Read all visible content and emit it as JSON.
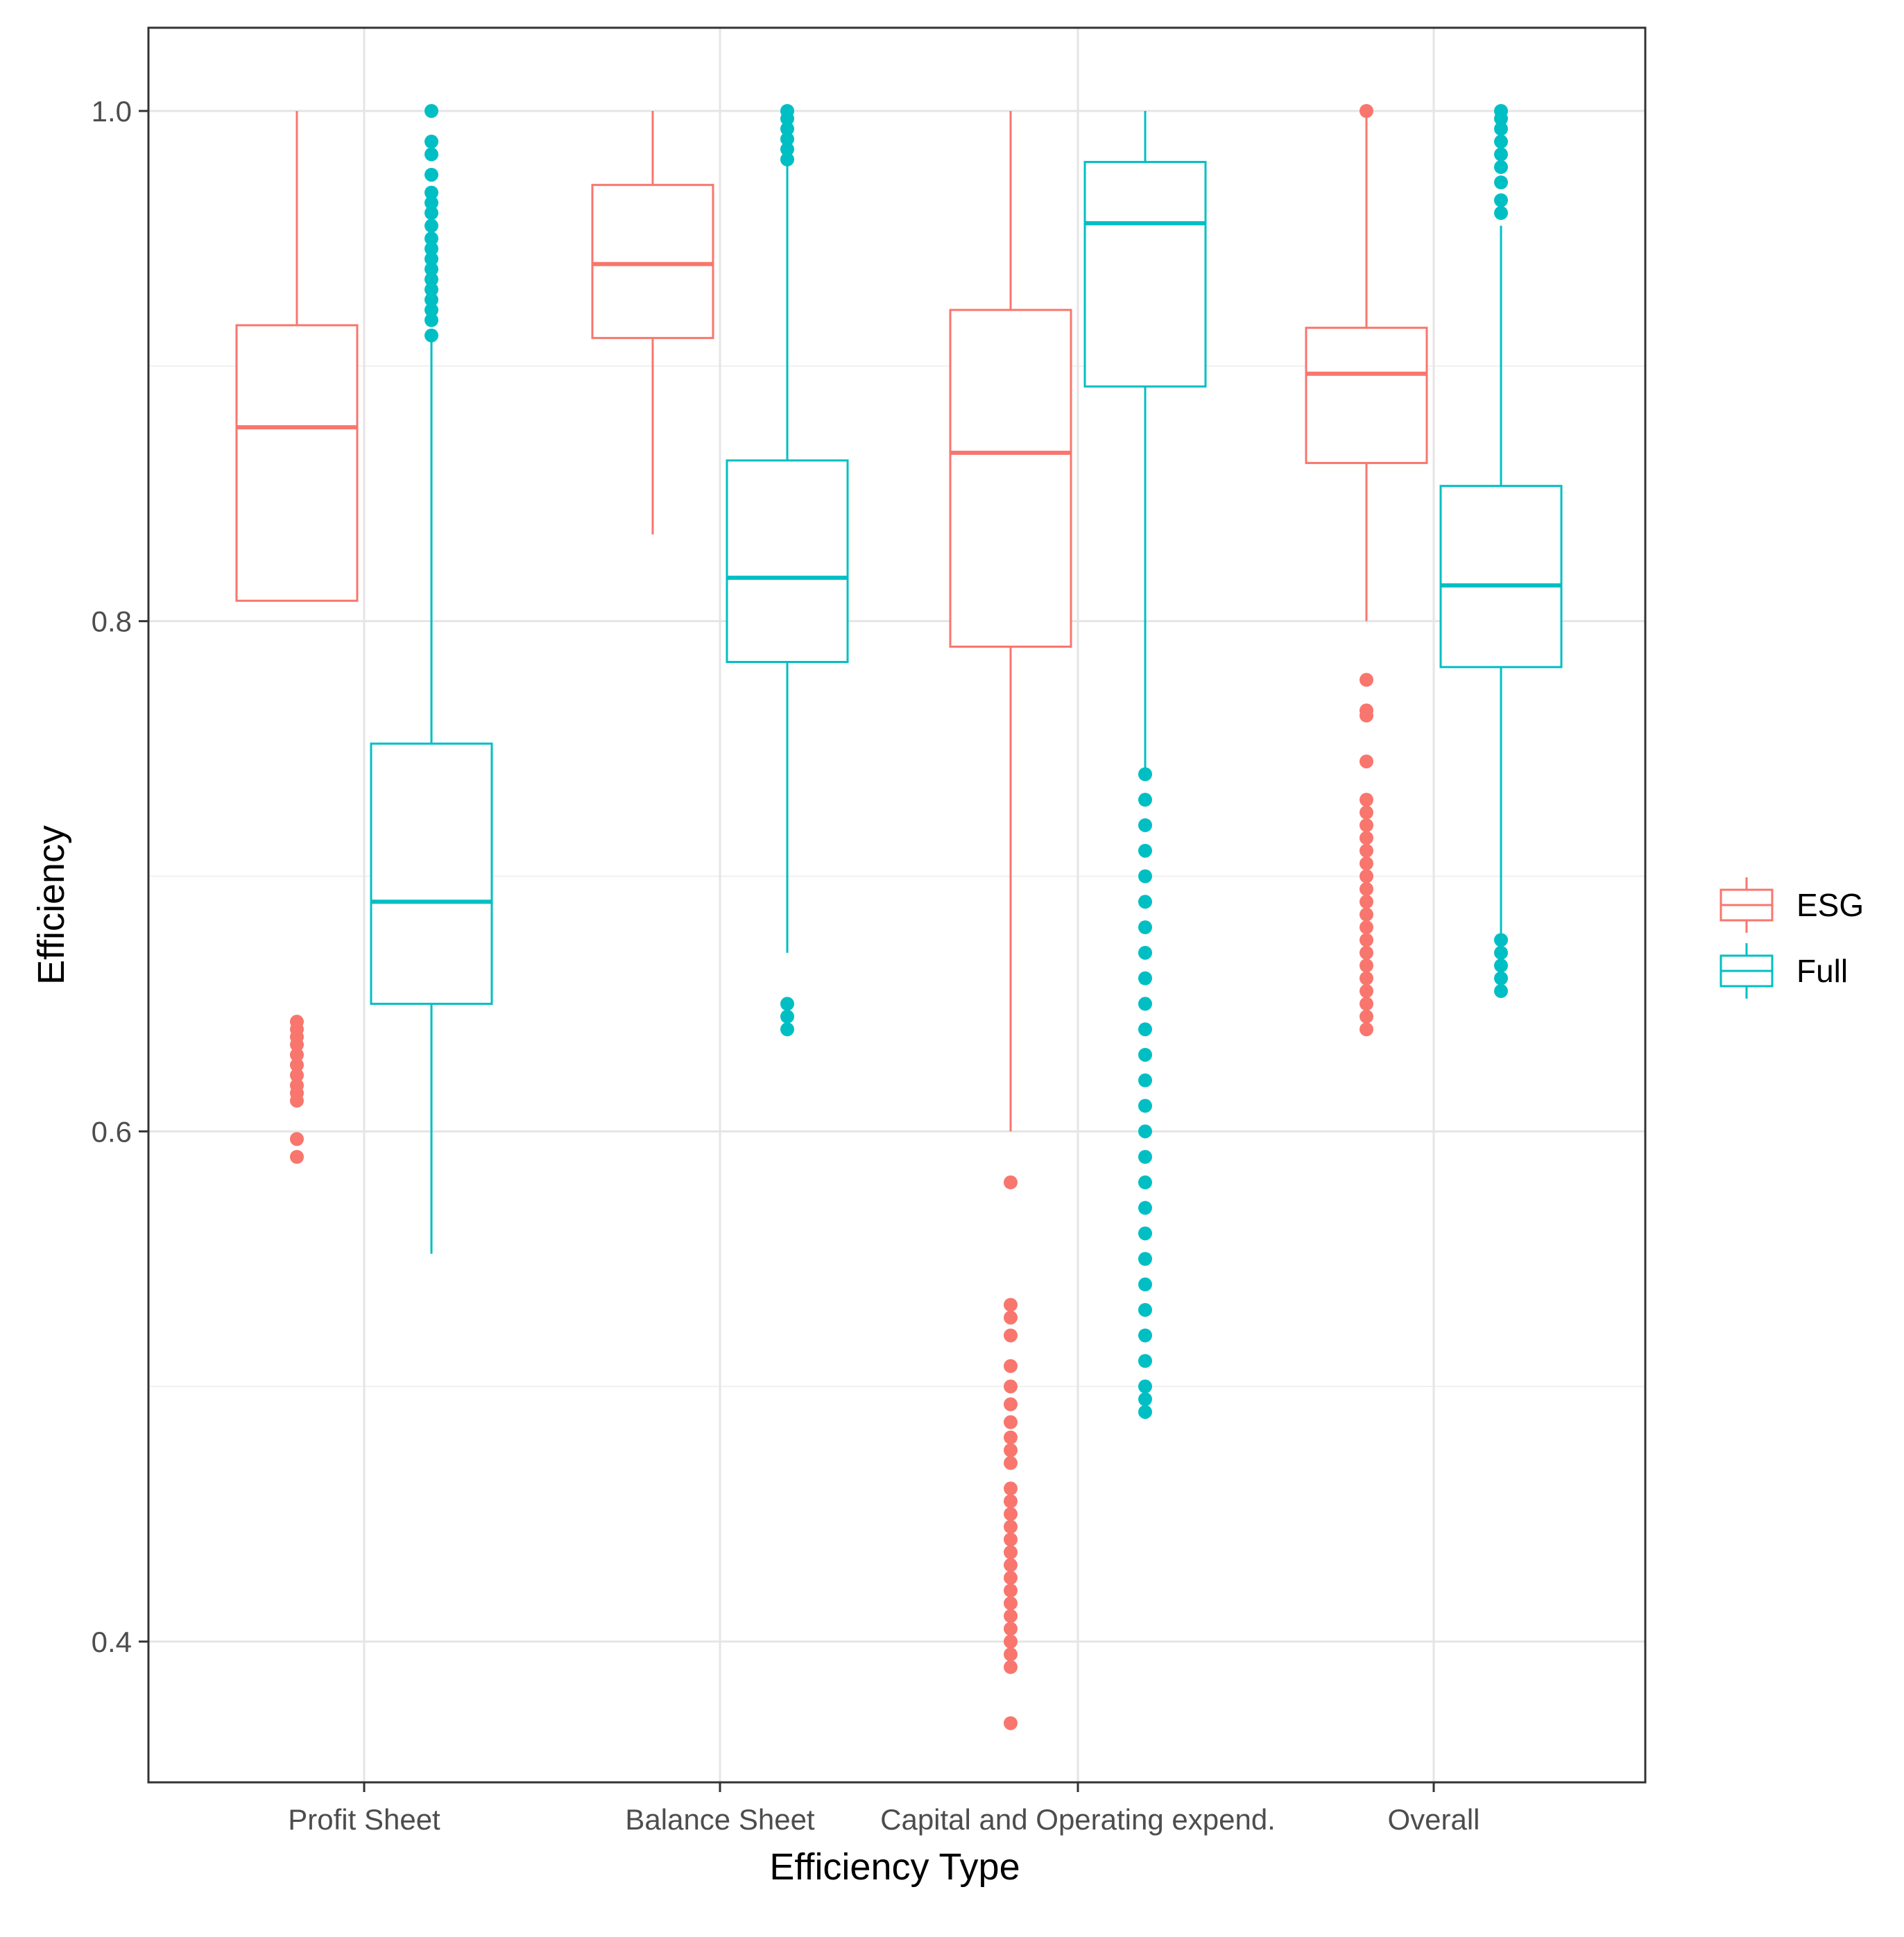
{
  "chart_data": {
    "type": "boxplot",
    "title": "",
    "xlabel": "Efficiency Type",
    "ylabel": "Efficiency",
    "ylim": [
      0.345,
      1.03
    ],
    "y_ticks": [
      0.4,
      0.6,
      0.8,
      1.0
    ],
    "y_tick_labels": [
      "0.4",
      "0.6",
      "0.8",
      "1.0"
    ],
    "grid": true,
    "legend_position": "right",
    "categories": [
      "Profit Sheet",
      "Balance Sheet",
      "Capital and Operating expend.",
      "Overall"
    ],
    "series": [
      {
        "name": "ESG",
        "color": "#F8766D",
        "boxes": [
          {
            "whisker_low": 0.808,
            "q1": 0.808,
            "median": 0.876,
            "q3": 0.916,
            "whisker_high": 1.0,
            "outliers": [
              0.59,
              0.597,
              0.612,
              0.615,
              0.618,
              0.622,
              0.626,
              0.63,
              0.634,
              0.637,
              0.64,
              0.643
            ]
          },
          {
            "whisker_low": 0.834,
            "q1": 0.911,
            "median": 0.94,
            "q3": 0.971,
            "whisker_high": 1.0,
            "outliers": []
          },
          {
            "whisker_low": 0.6,
            "q1": 0.79,
            "median": 0.866,
            "q3": 0.922,
            "whisker_high": 1.0,
            "outliers": [
              0.368,
              0.39,
              0.395,
              0.4,
              0.405,
              0.41,
              0.415,
              0.42,
              0.425,
              0.43,
              0.435,
              0.44,
              0.445,
              0.45,
              0.455,
              0.46,
              0.47,
              0.475,
              0.48,
              0.486,
              0.493,
              0.5,
              0.508,
              0.52,
              0.527,
              0.532,
              0.58
            ]
          },
          {
            "whisker_low": 0.8,
            "q1": 0.862,
            "median": 0.897,
            "q3": 0.915,
            "whisker_high": 1.0,
            "outliers": [
              0.64,
              0.645,
              0.65,
              0.655,
              0.66,
              0.665,
              0.67,
              0.675,
              0.68,
              0.685,
              0.69,
              0.695,
              0.7,
              0.705,
              0.71,
              0.715,
              0.72,
              0.725,
              0.73,
              0.745,
              0.763,
              0.765,
              0.777,
              1.0
            ]
          }
        ]
      },
      {
        "name": "Full",
        "color": "#00BFC4",
        "boxes": [
          {
            "whisker_low": 0.552,
            "q1": 0.65,
            "median": 0.69,
            "q3": 0.752,
            "whisker_high": 0.91,
            "outliers": [
              0.912,
              0.918,
              0.922,
              0.926,
              0.93,
              0.934,
              0.938,
              0.942,
              0.946,
              0.95,
              0.955,
              0.96,
              0.964,
              0.968,
              0.975,
              0.983,
              0.988,
              1.0
            ]
          },
          {
            "whisker_low": 0.67,
            "q1": 0.784,
            "median": 0.817,
            "q3": 0.863,
            "whisker_high": 0.98,
            "outliers": [
              0.64,
              0.645,
              0.65,
              0.981,
              0.985,
              0.989,
              0.993,
              0.997,
              1.0
            ]
          },
          {
            "whisker_low": 0.74,
            "q1": 0.892,
            "median": 0.956,
            "q3": 0.98,
            "whisker_high": 1.0,
            "outliers": [
              0.49,
              0.495,
              0.5,
              0.51,
              0.52,
              0.53,
              0.54,
              0.55,
              0.56,
              0.57,
              0.58,
              0.59,
              0.6,
              0.61,
              0.62,
              0.63,
              0.64,
              0.65,
              0.66,
              0.67,
              0.68,
              0.69,
              0.7,
              0.71,
              0.72,
              0.73,
              0.74
            ]
          },
          {
            "whisker_low": 0.677,
            "q1": 0.782,
            "median": 0.814,
            "q3": 0.853,
            "whisker_high": 0.955,
            "outliers": [
              0.655,
              0.66,
              0.665,
              0.67,
              0.675,
              0.96,
              0.965,
              0.972,
              0.978,
              0.983,
              0.988,
              0.993,
              0.997,
              1.0
            ]
          }
        ]
      }
    ]
  },
  "legend": {
    "items": [
      {
        "label": "ESG",
        "color": "#F8766D"
      },
      {
        "label": "Full",
        "color": "#00BFC4"
      }
    ]
  }
}
